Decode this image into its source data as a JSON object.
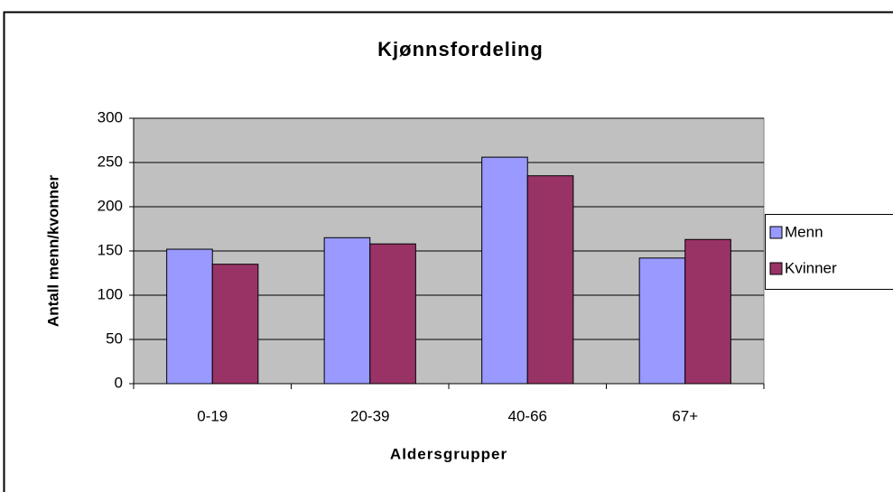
{
  "chart_data": {
    "type": "bar",
    "title": "Kjønnsfordeling",
    "x_label": "Aldersgrupper",
    "y_label": "Antall menn/kvonner",
    "categories": [
      "0-19",
      "20-39",
      "40-66",
      "67+"
    ],
    "series": [
      {
        "name": "Menn",
        "color": "#9999ff",
        "values": [
          152,
          165,
          256,
          142
        ]
      },
      {
        "name": "Kvinner",
        "color": "#993366",
        "values": [
          135,
          158,
          235,
          163
        ]
      }
    ],
    "ylim": [
      0,
      300
    ],
    "yticks": [
      0,
      50,
      100,
      150,
      200,
      250,
      300
    ],
    "grid": true,
    "legend": "right"
  }
}
